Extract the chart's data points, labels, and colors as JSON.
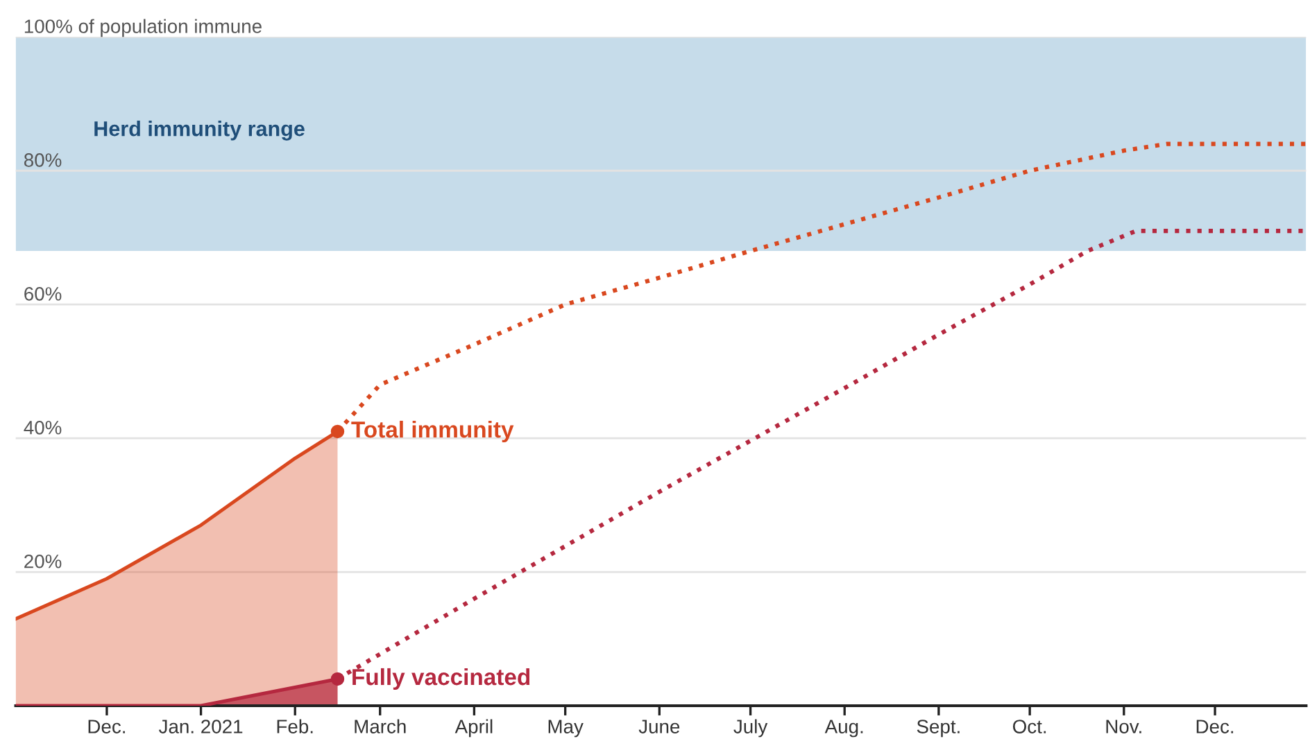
{
  "chart_data": {
    "type": "area",
    "x": [
      "2020-11-01",
      "2020-12-01",
      "2021-01-01",
      "2021-02-01",
      "2021-02-15"
    ],
    "series": [
      {
        "name": "Total immunity",
        "color": "#d9481f",
        "values": [
          13,
          19,
          27,
          37,
          41
        ]
      },
      {
        "type": "line",
        "line_style": "dotted",
        "color": "#d9481f",
        "x": [
          "2021-02-15",
          "2021-03-01",
          "2021-04-01",
          "2021-05-01",
          "2021-06-01",
          "2021-07-01",
          "2021-08-01",
          "2021-09-01",
          "2021-10-01",
          "2021-11-01",
          "2021-11-15",
          "2021-12-31"
        ],
        "values": [
          41,
          48,
          54,
          60,
          64,
          68,
          72,
          76,
          80,
          83,
          84,
          84
        ]
      },
      {
        "name": "Fully vaccinated",
        "type": "area",
        "color": "#b5283f",
        "x": [
          "2020-11-01",
          "2021-01-01",
          "2021-02-15"
        ],
        "values": [
          0,
          0,
          4
        ]
      },
      {
        "type": "line",
        "line_style": "dotted",
        "color": "#b5283f",
        "x": [
          "2021-02-15",
          "2021-04-01",
          "2021-06-01",
          "2021-08-01",
          "2021-09-01",
          "2021-10-01",
          "2021-10-20",
          "2021-11-05",
          "2021-12-31"
        ],
        "values": [
          4,
          16,
          32,
          47.5,
          55.5,
          63,
          68,
          71,
          71
        ]
      }
    ],
    "xlim": [
      "2020-11-01",
      "2021-12-31"
    ],
    "xticks": [
      {
        "value": "2020-12-01",
        "label": "Dec."
      },
      {
        "value": "2021-01-01",
        "label": "Jan. 2021"
      },
      {
        "value": "2021-02-01",
        "label": "Feb."
      },
      {
        "value": "2021-03-01",
        "label": "March"
      },
      {
        "value": "2021-04-01",
        "label": "April"
      },
      {
        "value": "2021-05-01",
        "label": "May"
      },
      {
        "value": "2021-06-01",
        "label": "June"
      },
      {
        "value": "2021-07-01",
        "label": "July"
      },
      {
        "value": "2021-08-01",
        "label": "Aug."
      },
      {
        "value": "2021-09-01",
        "label": "Sept."
      },
      {
        "value": "2021-10-01",
        "label": "Oct."
      },
      {
        "value": "2021-11-01",
        "label": "Nov."
      },
      {
        "value": "2021-12-01",
        "label": "Dec."
      }
    ],
    "ylim": [
      0,
      100
    ],
    "yticks": [
      {
        "value": 20,
        "label": "20%"
      },
      {
        "value": 40,
        "label": "40%"
      },
      {
        "value": 60,
        "label": "60%"
      },
      {
        "value": 80,
        "label": "80%"
      },
      {
        "value": 100,
        "label": "100% of population immune"
      }
    ],
    "grid": "y",
    "bands": [
      {
        "axis": "y",
        "from": 68,
        "to": 100,
        "label": "Herd immunity range",
        "color": "#c6dcea"
      }
    ]
  }
}
